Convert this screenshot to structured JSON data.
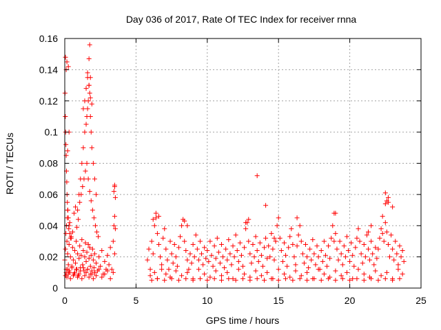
{
  "chart_data": {
    "type": "scatter",
    "title": "Day 036 of 2017, Rate Of TEC Index for receiver rnna",
    "xlabel": "GPS time / hours",
    "ylabel": "ROTI / TECUs",
    "xlim": [
      0,
      25
    ],
    "ylim": [
      0,
      0.16
    ],
    "xticks": [
      0,
      5,
      10,
      15,
      20,
      25
    ],
    "yticks": [
      0,
      0.02,
      0.04,
      0.06,
      0.08,
      0.1,
      0.12,
      0.14,
      0.16
    ],
    "xtick_labels": [
      "0",
      "5",
      "10",
      "15",
      "20",
      "25"
    ],
    "ytick_labels": [
      "0",
      "0.02",
      "0.04",
      "0.06",
      "0.08",
      "0.1",
      "0.12",
      "0.14",
      "0.16"
    ],
    "grid": true,
    "marker": "plus",
    "color": "#ff0000",
    "series": [
      {
        "x": [
          0.0,
          0.05,
          0.1,
          0.15,
          0.2,
          0.25,
          0.3,
          0.35,
          0.4,
          0.45,
          0.5,
          0.55,
          0.6,
          0.65,
          0.7,
          0.75,
          0.8,
          0.85,
          0.9,
          0.95,
          1.0,
          1.05,
          1.1,
          1.15,
          1.2,
          1.25,
          1.3,
          1.35,
          1.4,
          1.45,
          1.5,
          1.55,
          1.6,
          1.65,
          1.7,
          1.75,
          1.8,
          1.85,
          1.9,
          1.95,
          2.0,
          2.05,
          2.1,
          2.2,
          2.3,
          2.4,
          2.5,
          2.6,
          2.7,
          2.8,
          2.9,
          3.0,
          3.1,
          3.2,
          3.3,
          3.4,
          3.5,
          0.05,
          0.1,
          0.15,
          0.2,
          0.25,
          0.3,
          0.4,
          0.5,
          0.6,
          0.7,
          0.8,
          0.9,
          1.0,
          1.1,
          1.2,
          1.3,
          1.4,
          1.5,
          1.6,
          1.7,
          1.8,
          1.9,
          2.0,
          2.1,
          2.2,
          2.4,
          2.6,
          2.8,
          3.0,
          3.2,
          3.4,
          0.08,
          0.12,
          0.18,
          0.22,
          0.28,
          0.35,
          0.45,
          0.55,
          0.65,
          0.75,
          0.85,
          0.95,
          1.05,
          1.15,
          1.25,
          1.35,
          1.45,
          1.55,
          1.65,
          1.75,
          1.85,
          1.95,
          2.05,
          2.15,
          2.25,
          2.35,
          3.45,
          3.5,
          3.55,
          0.02,
          0.04,
          0.06,
          0.08,
          0.1,
          0.12,
          0.14,
          0.16,
          0.18,
          0.2,
          0.25,
          0.3,
          0.35,
          0.4,
          0.9,
          1.0,
          1.1,
          1.2,
          1.3,
          1.4,
          1.5,
          1.55,
          1.6,
          1.65,
          1.7,
          1.75,
          1.8,
          1.85,
          1.9,
          2.0,
          2.1,
          2.2,
          0.1,
          0.2,
          0.3,
          1.3,
          1.4,
          1.5,
          1.6,
          1.7,
          1.8,
          1.9,
          0.05,
          0.15,
          0.25,
          1.6,
          1.7,
          1.75,
          1.8,
          3.45,
          3.5,
          3.55,
          3.5,
          5.8,
          5.9,
          6.0,
          6.1,
          6.2,
          6.3,
          6.4,
          6.5,
          6.6,
          6.7,
          6.8,
          6.9,
          7.0,
          7.1,
          7.2,
          7.3,
          7.4,
          7.5,
          7.6,
          7.7,
          7.8,
          7.9,
          8.0,
          8.1,
          8.2,
          8.3,
          8.4,
          8.5,
          8.6,
          8.7,
          8.8,
          8.9,
          9.0,
          9.1,
          9.2,
          9.3,
          9.4,
          9.5,
          9.6,
          9.7,
          9.8,
          9.9,
          10.0,
          10.1,
          10.2,
          10.3,
          10.4,
          10.5,
          10.6,
          10.7,
          10.8,
          10.9,
          11.0,
          11.1,
          11.2,
          11.3,
          11.4,
          11.5,
          11.6,
          11.7,
          11.8,
          11.9,
          12.0,
          12.1,
          12.2,
          12.3,
          12.4,
          12.5,
          12.6,
          12.7,
          12.8,
          12.9,
          13.0,
          13.1,
          13.2,
          13.3,
          13.4,
          13.5,
          13.6,
          13.7,
          13.8,
          13.9,
          14.0,
          14.1,
          14.2,
          14.3,
          14.4,
          14.5,
          14.6,
          14.7,
          14.8,
          14.9,
          15.0,
          15.1,
          15.2,
          15.3,
          15.4,
          15.5,
          15.6,
          15.7,
          15.8,
          15.9,
          16.0,
          16.1,
          16.2,
          16.3,
          16.4,
          16.5,
          16.6,
          16.7,
          16.8,
          16.9,
          17.0,
          17.1,
          17.2,
          17.3,
          17.4,
          17.5,
          17.6,
          17.7,
          17.8,
          17.9,
          18.0,
          18.1,
          18.2,
          18.3,
          18.4,
          18.5,
          18.6,
          18.7,
          18.8,
          18.9,
          19.0,
          19.1,
          19.2,
          19.3,
          19.4,
          19.5,
          19.6,
          19.7,
          19.8,
          19.9,
          20.0,
          20.1,
          20.2,
          20.3,
          20.4,
          20.5,
          20.6,
          20.7,
          20.8,
          20.9,
          21.0,
          21.1,
          21.2,
          21.3,
          21.4,
          21.5,
          21.6,
          21.7,
          21.8,
          21.9,
          22.0,
          22.1,
          22.2,
          22.3,
          22.4,
          22.5,
          22.6,
          22.7,
          22.8,
          22.9,
          23.0,
          23.1,
          23.2,
          23.3,
          23.4,
          23.5,
          23.6,
          23.7,
          23.8,
          6.0,
          6.3,
          6.5,
          6.8,
          7.1,
          7.4,
          7.8,
          8.2,
          8.6,
          9.0,
          9.4,
          9.8,
          10.2,
          10.6,
          11.0,
          11.4,
          11.8,
          12.2,
          12.6,
          13.0,
          13.4,
          13.8,
          14.2,
          14.6,
          15.0,
          15.4,
          15.8,
          16.2,
          16.6,
          17.0,
          17.4,
          17.8,
          18.2,
          18.6,
          19.0,
          19.4,
          19.8,
          20.2,
          20.6,
          21.0,
          21.4,
          21.8,
          22.2,
          22.6,
          23.0,
          23.4,
          23.7,
          6.2,
          6.4,
          6.6,
          8.4,
          8.6,
          12.7,
          12.9,
          14.7,
          14.8,
          16.3,
          18.9,
          19.0,
          21.3,
          21.5,
          22.3,
          22.5,
          22.7,
          23.0,
          6.1,
          6.5,
          7.0,
          7.5,
          8.0,
          8.5,
          9.0,
          9.5,
          10.0,
          10.5,
          11.0,
          11.5,
          12.0,
          12.5,
          13.0,
          13.5,
          14.0,
          14.5,
          15.0,
          15.5,
          16.0,
          16.5,
          17.0,
          17.5,
          18.0,
          18.5,
          19.0,
          19.5,
          20.0,
          20.5,
          21.0,
          21.5,
          22.0,
          22.5,
          23.0,
          23.5,
          13.5,
          14.1,
          22.5,
          22.6,
          22.7
        ],
        "y": [
          0.018,
          0.025,
          0.012,
          0.03,
          0.022,
          0.015,
          0.028,
          0.01,
          0.02,
          0.032,
          0.014,
          0.026,
          0.018,
          0.009,
          0.024,
          0.016,
          0.03,
          0.012,
          0.022,
          0.008,
          0.019,
          0.027,
          0.013,
          0.021,
          0.031,
          0.015,
          0.024,
          0.011,
          0.02,
          0.029,
          0.017,
          0.023,
          0.012,
          0.028,
          0.019,
          0.026,
          0.014,
          0.021,
          0.009,
          0.025,
          0.018,
          0.013,
          0.022,
          0.016,
          0.011,
          0.02,
          0.014,
          0.024,
          0.009,
          0.017,
          0.012,
          0.021,
          0.015,
          0.026,
          0.012,
          0.03,
          0.022,
          0.008,
          0.01,
          0.007,
          0.012,
          0.009,
          0.011,
          0.006,
          0.013,
          0.008,
          0.01,
          0.012,
          0.007,
          0.009,
          0.011,
          0.006,
          0.013,
          0.008,
          0.01,
          0.012,
          0.007,
          0.009,
          0.011,
          0.006,
          0.01,
          0.008,
          0.012,
          0.007,
          0.009,
          0.011,
          0.006,
          0.01,
          0.035,
          0.04,
          0.045,
          0.05,
          0.038,
          0.042,
          0.033,
          0.036,
          0.048,
          0.052,
          0.039,
          0.044,
          0.055,
          0.06,
          0.065,
          0.07,
          0.075,
          0.08,
          0.07,
          0.062,
          0.056,
          0.05,
          0.045,
          0.04,
          0.036,
          0.033,
          0.04,
          0.046,
          0.038,
          0.125,
          0.11,
          0.1,
          0.092,
          0.085,
          0.075,
          0.068,
          0.06,
          0.055,
          0.05,
          0.045,
          0.04,
          0.035,
          0.032,
          0.05,
          0.06,
          0.07,
          0.08,
          0.09,
          0.1,
          0.105,
          0.11,
          0.115,
          0.12,
          0.13,
          0.125,
          0.11,
          0.1,
          0.09,
          0.08,
          0.07,
          0.06,
          0.14,
          0.088,
          0.1,
          0.115,
          0.12,
          0.128,
          0.135,
          0.13,
          0.122,
          0.118,
          0.148,
          0.145,
          0.142,
          0.138,
          0.147,
          0.156,
          0.135,
          0.062,
          0.065,
          0.058,
          0.066,
          0.018,
          0.025,
          0.012,
          0.03,
          0.022,
          0.04,
          0.045,
          0.035,
          0.028,
          0.02,
          0.015,
          0.032,
          0.038,
          0.025,
          0.018,
          0.012,
          0.03,
          0.022,
          0.016,
          0.028,
          0.02,
          0.014,
          0.026,
          0.033,
          0.04,
          0.044,
          0.03,
          0.024,
          0.018,
          0.012,
          0.022,
          0.016,
          0.028,
          0.02,
          0.034,
          0.025,
          0.018,
          0.03,
          0.022,
          0.015,
          0.026,
          0.019,
          0.024,
          0.017,
          0.03,
          0.021,
          0.014,
          0.027,
          0.019,
          0.032,
          0.023,
          0.016,
          0.028,
          0.02,
          0.013,
          0.025,
          0.018,
          0.031,
          0.022,
          0.015,
          0.027,
          0.02,
          0.034,
          0.024,
          0.017,
          0.029,
          0.021,
          0.014,
          0.026,
          0.038,
          0.042,
          0.03,
          0.022,
          0.016,
          0.028,
          0.02,
          0.033,
          0.024,
          0.017,
          0.029,
          0.021,
          0.014,
          0.026,
          0.032,
          0.019,
          0.027,
          0.02,
          0.035,
          0.025,
          0.018,
          0.03,
          0.04,
          0.045,
          0.032,
          0.024,
          0.017,
          0.029,
          0.021,
          0.014,
          0.026,
          0.033,
          0.038,
          0.028,
          0.02,
          0.015,
          0.027,
          0.034,
          0.04,
          0.03,
          0.022,
          0.016,
          0.028,
          0.02,
          0.013,
          0.025,
          0.018,
          0.031,
          0.022,
          0.015,
          0.027,
          0.02,
          0.012,
          0.024,
          0.017,
          0.03,
          0.021,
          0.014,
          0.027,
          0.019,
          0.032,
          0.04,
          0.048,
          0.035,
          0.025,
          0.018,
          0.03,
          0.022,
          0.015,
          0.027,
          0.02,
          0.033,
          0.024,
          0.017,
          0.029,
          0.021,
          0.014,
          0.026,
          0.032,
          0.038,
          0.03,
          0.022,
          0.016,
          0.028,
          0.02,
          0.034,
          0.025,
          0.018,
          0.03,
          0.022,
          0.015,
          0.026,
          0.019,
          0.025,
          0.032,
          0.038,
          0.035,
          0.03,
          0.042,
          0.036,
          0.028,
          0.02,
          0.034,
          0.025,
          0.018,
          0.03,
          0.022,
          0.015,
          0.027,
          0.02,
          0.024,
          0.017,
          0.008,
          0.01,
          0.006,
          0.012,
          0.009,
          0.007,
          0.011,
          0.008,
          0.01,
          0.006,
          0.012,
          0.009,
          0.007,
          0.011,
          0.008,
          0.01,
          0.006,
          0.012,
          0.009,
          0.007,
          0.011,
          0.008,
          0.01,
          0.006,
          0.012,
          0.009,
          0.007,
          0.011,
          0.008,
          0.01,
          0.006,
          0.012,
          0.009,
          0.007,
          0.011,
          0.008,
          0.01,
          0.006,
          0.012,
          0.009,
          0.007,
          0.011,
          0.008,
          0.01,
          0.006,
          0.012,
          0.009,
          0.044,
          0.048,
          0.046,
          0.043,
          0.04,
          0.042,
          0.044,
          0.032,
          0.03,
          0.045,
          0.03,
          0.048,
          0.036,
          0.04,
          0.046,
          0.054,
          0.058,
          0.052,
          0.005,
          0.006,
          0.005,
          0.006,
          0.005,
          0.006,
          0.005,
          0.006,
          0.005,
          0.006,
          0.005,
          0.006,
          0.005,
          0.006,
          0.005,
          0.006,
          0.005,
          0.006,
          0.005,
          0.006,
          0.005,
          0.006,
          0.005,
          0.006,
          0.005,
          0.006,
          0.005,
          0.006,
          0.005,
          0.006,
          0.005,
          0.006,
          0.005,
          0.006,
          0.005,
          0.006,
          0.072,
          0.053,
          0.061,
          0.056,
          0.055
        ]
      }
    ]
  }
}
